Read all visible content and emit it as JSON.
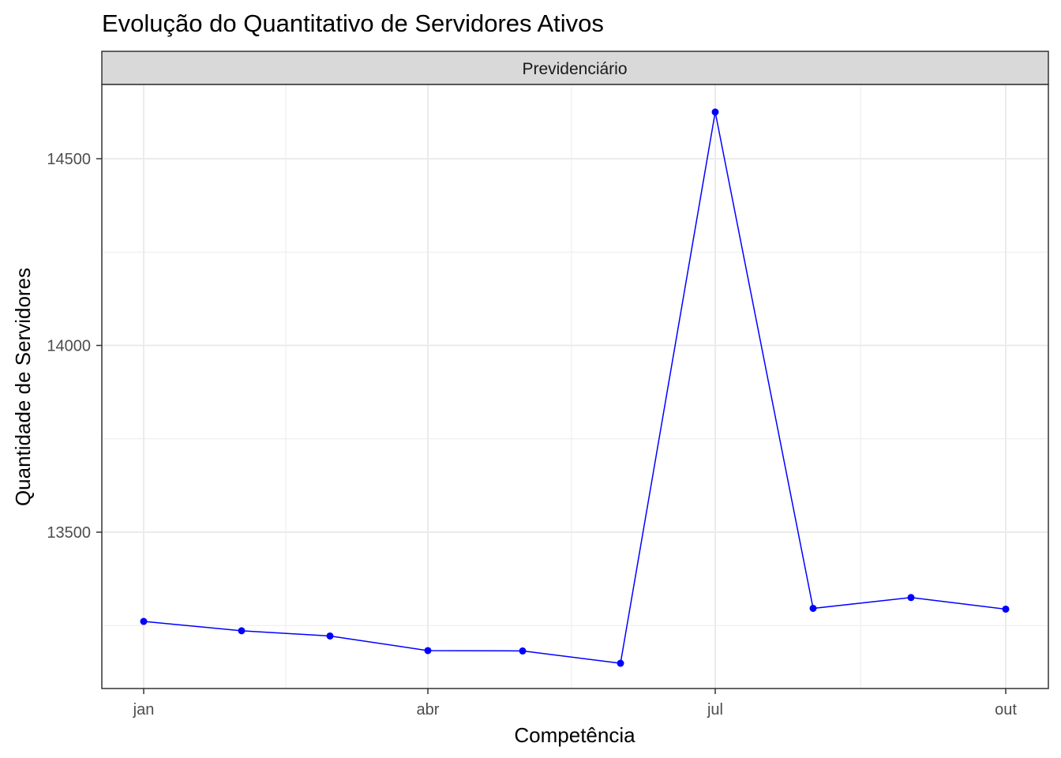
{
  "chart_data": {
    "type": "line",
    "title": "Evolução do Quantitativo de Servidores Ativos",
    "facet": "Previdenciário",
    "xlabel": "Competência",
    "ylabel": "Quantidade de Servidores",
    "x_ticks": [
      "jan",
      "abr",
      "jul",
      "out"
    ],
    "y_ticks": [
      13500,
      14000,
      14500
    ],
    "ylim": [
      13100,
      14700
    ],
    "grid": true,
    "legend": "none",
    "colors": {
      "line": "#0000ff",
      "point": "#0000ff",
      "strip_fill": "#d9d9d9",
      "grid": "#ebebeb"
    },
    "series": [
      {
        "x": [
          "2021-01-01",
          "2021-02-01",
          "2021-03-01",
          "2021-04-01",
          "2021-05-01",
          "2021-06-01",
          "2021-07-01",
          "2021-08-01",
          "2021-09-01",
          "2021-10-01"
        ],
        "y": [
          13261,
          13236,
          13222,
          13183,
          13182,
          13149,
          14625,
          13296,
          13325,
          13294
        ]
      }
    ]
  }
}
